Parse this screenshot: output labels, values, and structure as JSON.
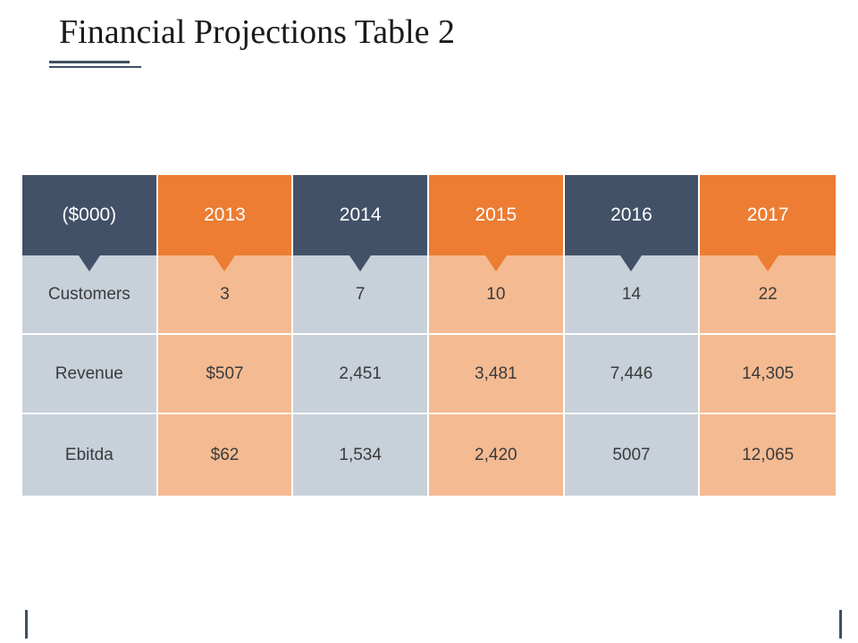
{
  "title": "Financial Projections Table 2",
  "table": {
    "header": [
      "($000)",
      "2013",
      "2014",
      "2015",
      "2016",
      "2017"
    ],
    "rows": [
      [
        "Customers",
        "3",
        "7",
        "10",
        "14",
        "22"
      ],
      [
        "Revenue",
        "$507",
        "2,451",
        "3,481",
        "7,446",
        "14,305"
      ],
      [
        "Ebitda",
        "$62",
        "1,534",
        "2,420",
        "5007",
        "12,065"
      ]
    ]
  },
  "colors": {
    "dark_header": "#425167",
    "orange_header": "#ec7d33",
    "dark_body": "#c8d0da",
    "orange_body": "#f4ba92"
  }
}
